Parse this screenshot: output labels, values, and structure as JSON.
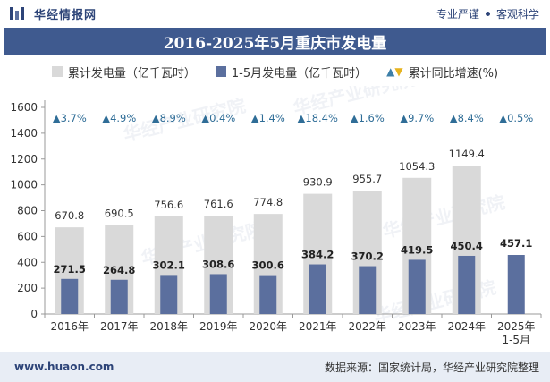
{
  "header": {
    "brand": "华经情报网",
    "tagline_left": "专业严谨",
    "tagline_right": "客观科学"
  },
  "footer": {
    "url": "www.huaon.com",
    "source": "数据来源：国家统计局，华经产业研究院整理"
  },
  "colors": {
    "total_bar": "#d9d9d9",
    "period_bar": "#5b6f9e",
    "growth_up": "#3d7fa8",
    "growth_down": "#e6b31e",
    "title_bg": "#3f5a8f"
  },
  "chart_data": {
    "type": "bar",
    "title": "2016-2025年5月重庆市发电量",
    "categories": [
      "2016年",
      "2017年",
      "2018年",
      "2019年",
      "2020年",
      "2021年",
      "2022年",
      "2023年",
      "2024年",
      "2025年\n1-5月"
    ],
    "series": [
      {
        "name": "累计发电量（亿千瓦时）",
        "values": [
          670.8,
          690.5,
          756.6,
          761.6,
          774.8,
          930.9,
          955.7,
          1054.3,
          1149.4,
          null
        ]
      },
      {
        "name": "1-5月发电量（亿千瓦时）",
        "values": [
          271.5,
          264.8,
          302.1,
          308.6,
          300.6,
          384.2,
          370.2,
          419.5,
          450.4,
          457.1
        ]
      }
    ],
    "growth": {
      "name": "累计同比增速(%)",
      "values": [
        3.7,
        4.9,
        8.9,
        0.4,
        1.4,
        18.4,
        1.6,
        9.7,
        8.4,
        0.5
      ],
      "labels": [
        "▲3.7%",
        "▲4.9%",
        "▲8.9%",
        "▲0.4%",
        "▲1.4%",
        "▲18.4%",
        "▲1.6%",
        "▲9.7%",
        "▲8.4%",
        "▲0.5%"
      ]
    },
    "ylim": [
      0,
      1600
    ],
    "yticks": [
      0,
      200,
      400,
      600,
      800,
      1000,
      1200,
      1400,
      1600
    ],
    "legend_position": "top",
    "grid": false
  }
}
